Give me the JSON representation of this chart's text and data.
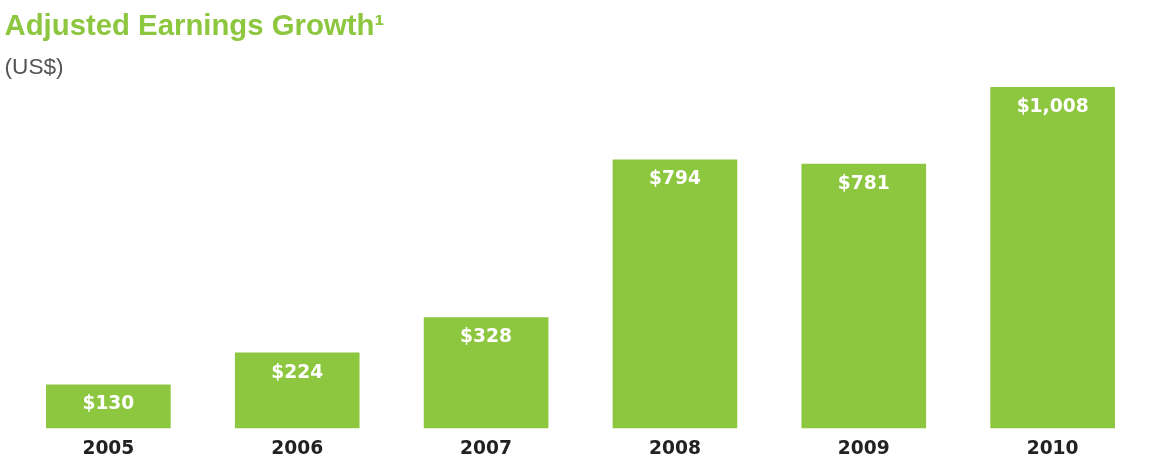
{
  "chart_data": {
    "type": "bar",
    "title": "Adjusted Earnings Growth¹",
    "subtitle": "(US$)",
    "categories": [
      "2005",
      "2006",
      "2007",
      "2008",
      "2009",
      "2010"
    ],
    "values": [
      130,
      224,
      328,
      794,
      781,
      1008
    ],
    "value_labels": [
      "$130",
      "$224",
      "$328",
      "$794",
      "$781",
      "$1,008"
    ],
    "color": "#8dc63f",
    "grid": false
  }
}
